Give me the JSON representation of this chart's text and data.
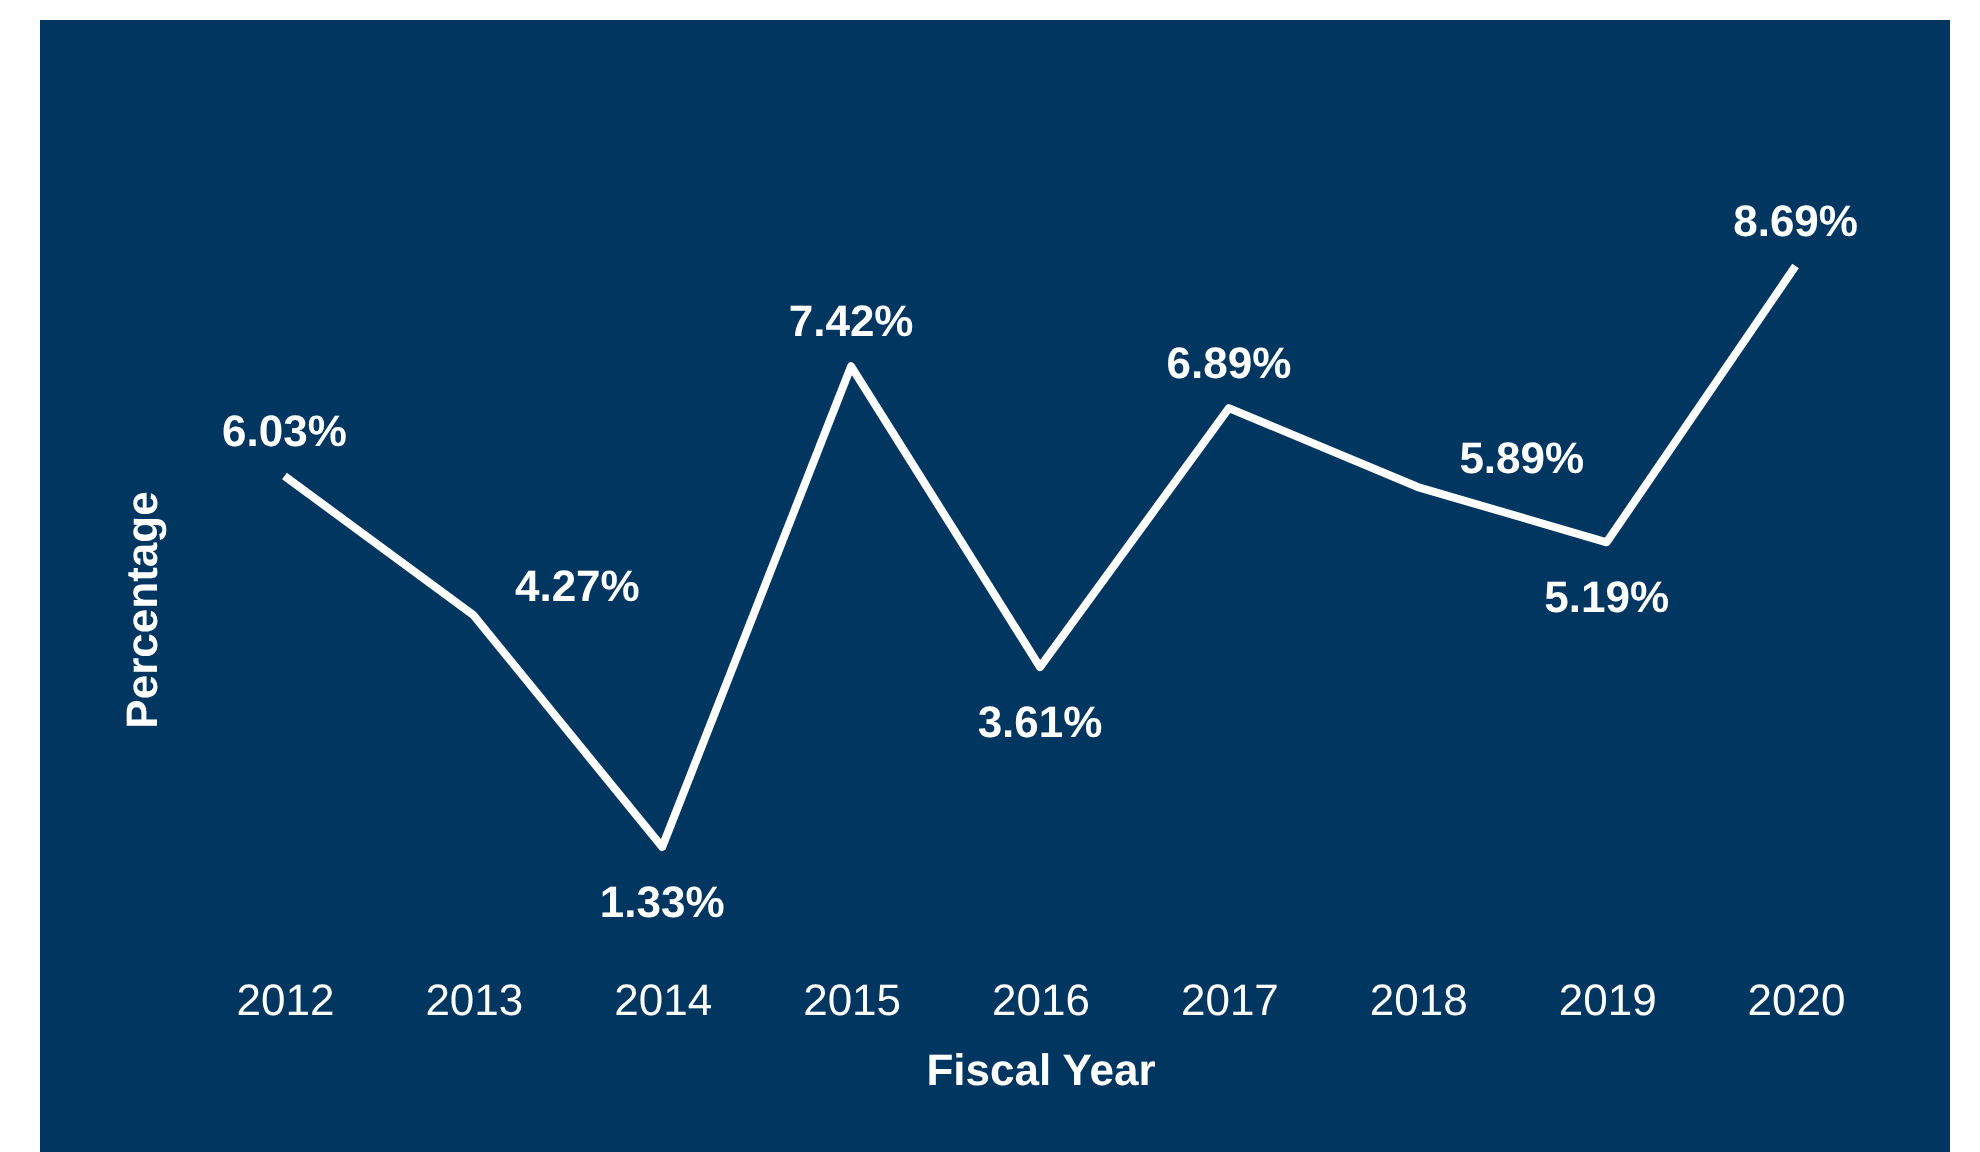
{
  "chart_data": {
    "type": "line",
    "xlabel": "Fiscal Year",
    "ylabel": "Percentage",
    "categories": [
      "2012",
      "2013",
      "2014",
      "2015",
      "2016",
      "2017",
      "2018",
      "2019",
      "2020"
    ],
    "series": [
      {
        "color": "#ffffff",
        "values": [
          6.03,
          4.27,
          1.33,
          7.42,
          3.61,
          6.89,
          5.89,
          5.19,
          8.69
        ],
        "value_labels": [
          "6.03%",
          "4.27%",
          "1.33%",
          "7.42%",
          "3.61%",
          "6.89%",
          "5.89%",
          "5.19%",
          "8.69%"
        ]
      }
    ],
    "marker": "none",
    "line_style": "solid"
  }
}
